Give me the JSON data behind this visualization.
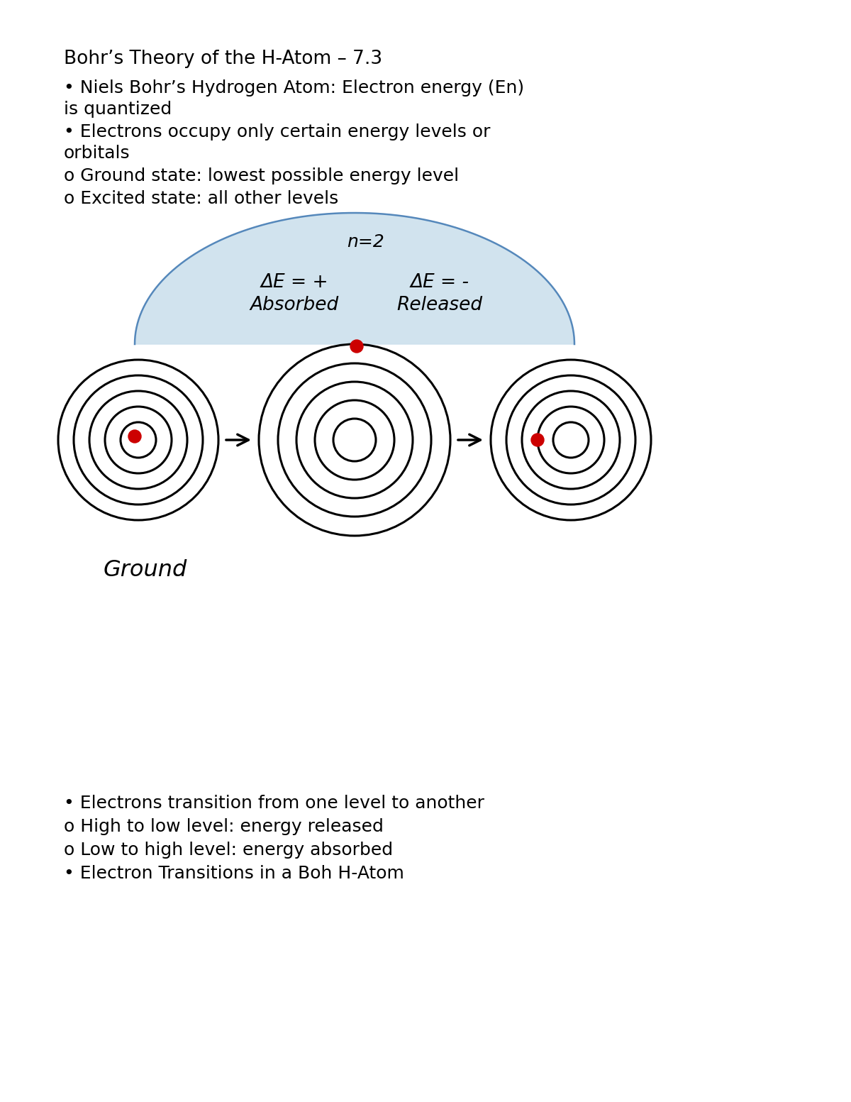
{
  "title": "Bohr’s Theory of the H-Atom – 7.3",
  "bullet1": "• Niels Bohr’s Hydrogen Atom: Electron energy (En)\nis quantized",
  "bullet2": "• Electrons occupy only certain energy levels or\norbitals",
  "sub1": "o Ground state: lowest possible energy level",
  "sub2": "o Excited state: all other levels",
  "n2_label": "n=2",
  "absorbed_label": "Absorbed",
  "absorbed_delta": "ΔE = +",
  "released_label": "Released",
  "released_delta": "ΔE = -",
  "ground_label": "Ground",
  "bullet3": "• Electrons transition from one level to another",
  "sub3": "o High to low level: energy released",
  "sub4": "o Low to high level: energy absorbed",
  "bullet4": "• Electron Transitions in a Boh H-Atom",
  "bg_color": "#ffffff",
  "text_color": "#000000",
  "orbit_color": "#000000",
  "nucleus_color": "#cc0000",
  "arc_fill_color": "#cce0ed",
  "arc_edge_color": "#5588bb",
  "font_size_title": 19,
  "font_size_body": 18,
  "font_size_sub": 18,
  "font_size_diagram": 17
}
